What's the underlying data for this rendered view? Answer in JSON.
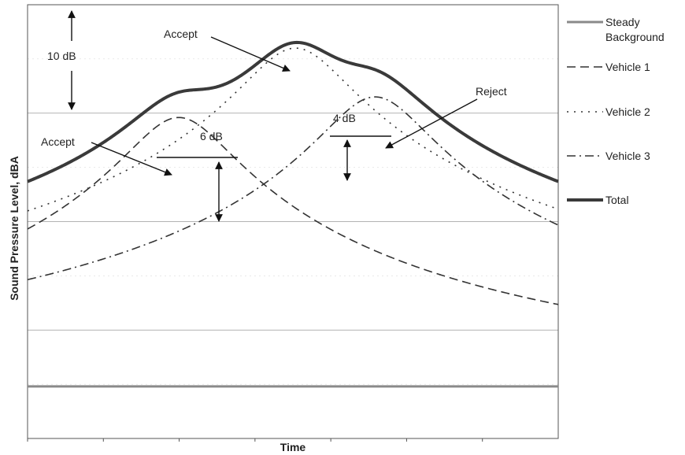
{
  "chart_data": {
    "type": "line",
    "title": "",
    "xlabel": "Time",
    "ylabel": "Sound Pressure Level, dBA",
    "ylim": [
      0,
      40
    ],
    "ygrid_step": 10,
    "xlim": [
      0,
      100
    ],
    "grid": true,
    "legend_position": "right",
    "series": [
      {
        "name": "Steady Background",
        "style": "solid",
        "color": "#8a8a8a",
        "level": 4.8,
        "width": 3
      },
      {
        "name": "Vehicle 1",
        "style": "dash",
        "color": "#333333",
        "peak_time": 28.5,
        "peak": 29.6,
        "base": 4.8,
        "width": 1.6
      },
      {
        "name": "Vehicle 2",
        "style": "dot",
        "color": "#333333",
        "peak_time": 50.5,
        "peak": 36.0,
        "base": 4.8,
        "width": 1.6
      },
      {
        "name": "Vehicle 3",
        "style": "dashdot",
        "color": "#333333",
        "peak_time": 65.5,
        "peak": 31.5,
        "base": 4.8,
        "width": 1.6
      },
      {
        "name": "Total",
        "style": "solid",
        "color": "#3a3a3a",
        "width": 4
      }
    ],
    "annotations": [
      {
        "text": "10 dB",
        "kind": "dimension"
      },
      {
        "text": "6 dB",
        "kind": "dimension"
      },
      {
        "text": "4 dB",
        "kind": "dimension"
      },
      {
        "text": "Accept",
        "kind": "callout",
        "target": "Vehicle 2 peak"
      },
      {
        "text": "Accept",
        "kind": "callout",
        "target": "Vehicle 1 peak"
      },
      {
        "text": "Reject",
        "kind": "callout",
        "target": "Vehicle 3 peak"
      }
    ]
  }
}
